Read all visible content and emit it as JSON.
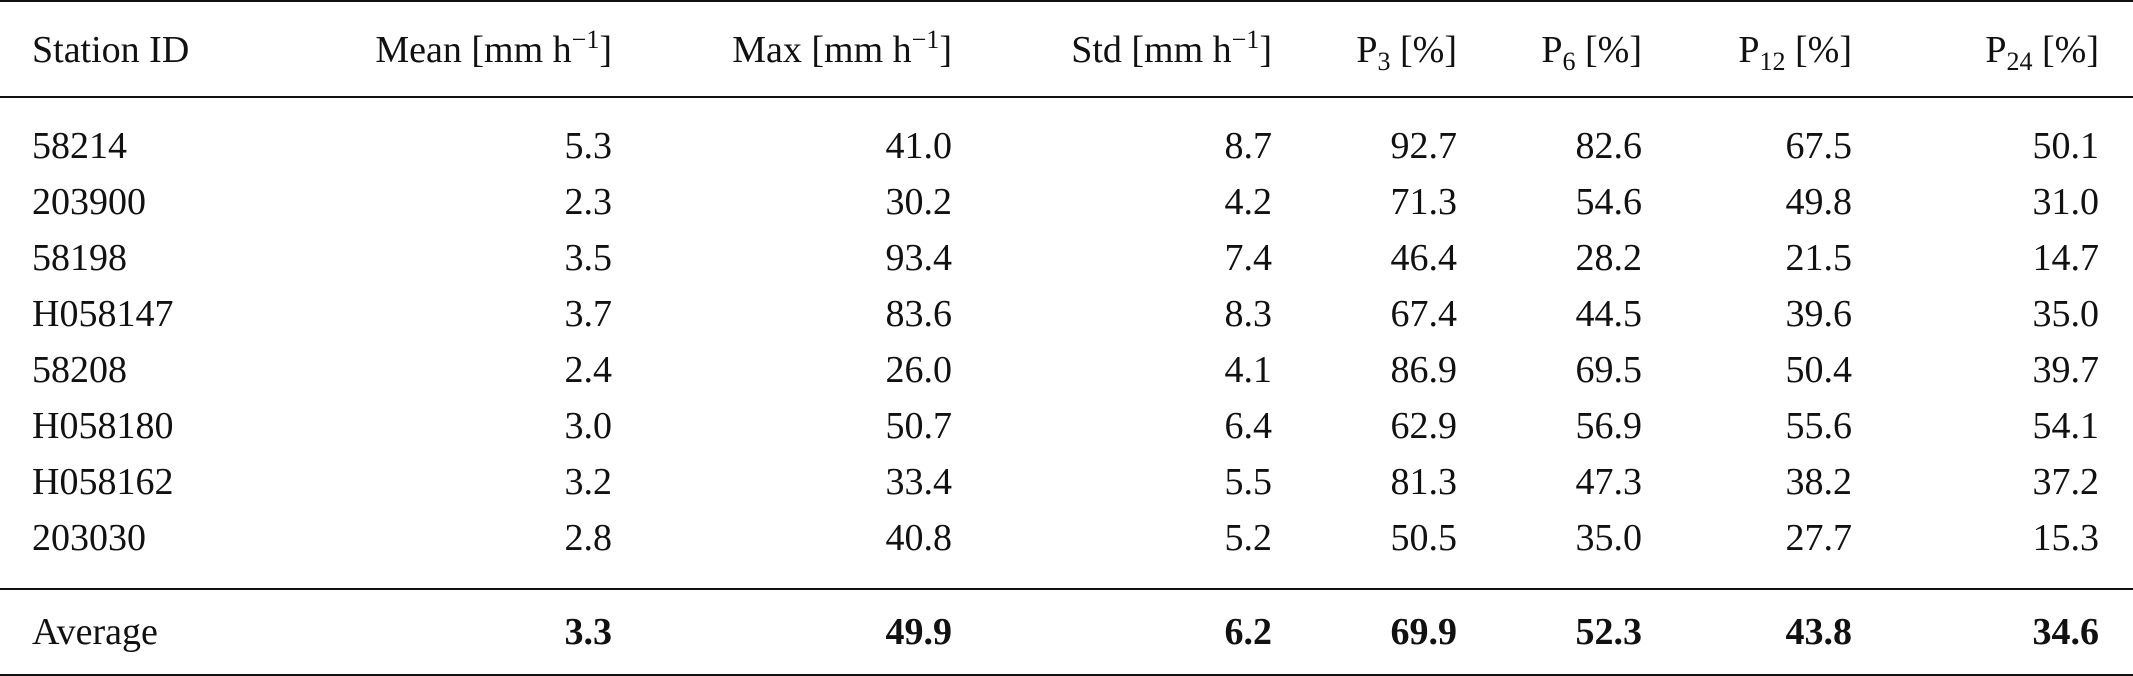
{
  "table": {
    "headers": {
      "station": "Station ID",
      "mean": {
        "label": "Mean [mm h",
        "sup": "−1",
        "close": "]"
      },
      "max": {
        "label": "Max [mm h",
        "sup": "−1",
        "close": "]"
      },
      "std": {
        "label": "Std [mm h",
        "sup": "−1",
        "close": "]"
      },
      "p3": {
        "label": "P",
        "sub": "3",
        "unit": " [%]"
      },
      "p6": {
        "label": "P",
        "sub": "6",
        "unit": " [%]"
      },
      "p12": {
        "label": "P",
        "sub": "12",
        "unit": " [%]"
      },
      "p24": {
        "label": "P",
        "sub": "24",
        "unit": " [%]"
      }
    },
    "rows": [
      {
        "station": "58214",
        "mean": "5.3",
        "max": "41.0",
        "std": "8.7",
        "p3": "92.7",
        "p6": "82.6",
        "p12": "67.5",
        "p24": "50.1"
      },
      {
        "station": "203900",
        "mean": "2.3",
        "max": "30.2",
        "std": "4.2",
        "p3": "71.3",
        "p6": "54.6",
        "p12": "49.8",
        "p24": "31.0"
      },
      {
        "station": "58198",
        "mean": "3.5",
        "max": "93.4",
        "std": "7.4",
        "p3": "46.4",
        "p6": "28.2",
        "p12": "21.5",
        "p24": "14.7"
      },
      {
        "station": "H058147",
        "mean": "3.7",
        "max": "83.6",
        "std": "8.3",
        "p3": "67.4",
        "p6": "44.5",
        "p12": "39.6",
        "p24": "35.0"
      },
      {
        "station": "58208",
        "mean": "2.4",
        "max": "26.0",
        "std": "4.1",
        "p3": "86.9",
        "p6": "69.5",
        "p12": "50.4",
        "p24": "39.7"
      },
      {
        "station": "H058180",
        "mean": "3.0",
        "max": "50.7",
        "std": "6.4",
        "p3": "62.9",
        "p6": "56.9",
        "p12": "55.6",
        "p24": "54.1"
      },
      {
        "station": "H058162",
        "mean": "3.2",
        "max": "33.4",
        "std": "5.5",
        "p3": "81.3",
        "p6": "47.3",
        "p12": "38.2",
        "p24": "37.2"
      },
      {
        "station": "203030",
        "mean": "2.8",
        "max": "40.8",
        "std": "5.2",
        "p3": "50.5",
        "p6": "35.0",
        "p12": "27.7",
        "p24": "15.3"
      }
    ],
    "average": {
      "station": "Average",
      "mean": "3.3",
      "max": "49.9",
      "std": "6.2",
      "p3": "69.9",
      "p6": "52.3",
      "p12": "43.8",
      "p24": "34.6"
    }
  }
}
